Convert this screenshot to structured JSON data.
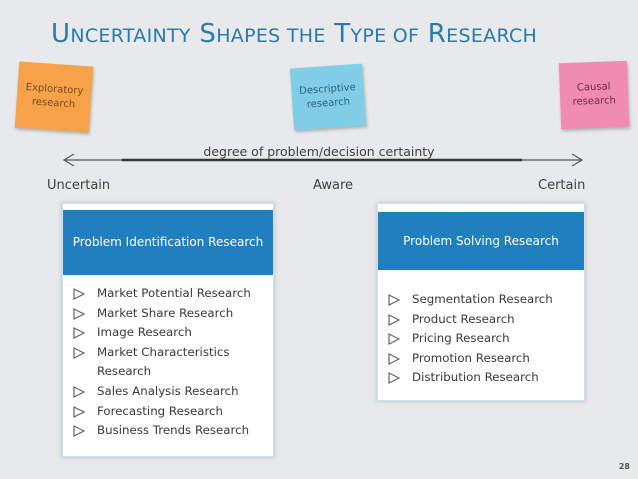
{
  "title": {
    "first_cap": "U",
    "first_rest": "NCERTAINTY",
    "second_cap": "S",
    "second_rest": "HAPES THE",
    "third_cap": "T",
    "third_rest": "YPE OF",
    "fourth_cap": "R",
    "fourth_rest": "ESEARCH"
  },
  "notes": {
    "exploratory": "Exploratory\nresearch",
    "descriptive": "Descriptive\nresearch",
    "causal": "Causal\nresearch"
  },
  "axis": {
    "label": "degree of problem/decision certainty"
  },
  "positions": {
    "uncertain": "Uncertain",
    "aware": "Aware",
    "certain": "Certain"
  },
  "left_panel": {
    "header": "Problem Identification Research",
    "items": [
      "Market Potential Research",
      "Market Share Research",
      "Image Research",
      "Market Characteristics Research",
      "Sales Analysis Research",
      "Forecasting Research",
      "Business Trends Research"
    ]
  },
  "right_panel": {
    "header": "Problem Solving Research",
    "items": [
      "Segmentation Research",
      "Product Research",
      "Pricing Research",
      "Promotion Research",
      "Distribution Research"
    ]
  },
  "page_number": "28",
  "colors": {
    "title": "#2a7aaa",
    "header": "#1f7fbf",
    "note_orange": "#f5a24a",
    "note_blue": "#7fcde6",
    "note_pink": "#f08bb1"
  }
}
